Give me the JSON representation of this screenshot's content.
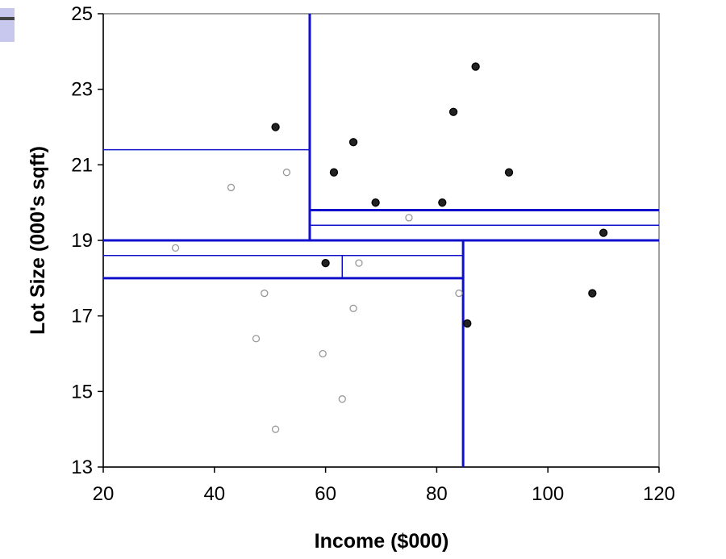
{
  "chart_data": {
    "type": "scatter",
    "title": "",
    "xlabel": "Income ($000)",
    "ylabel": "Lot Size (000's sqft)",
    "xlim": [
      20,
      120
    ],
    "ylim": [
      13,
      25
    ],
    "x_ticks": [
      20,
      40,
      60,
      80,
      100,
      120
    ],
    "y_ticks": [
      13,
      15,
      17,
      19,
      21,
      23,
      25
    ],
    "grid": false,
    "legend": "none",
    "colors": {
      "partition": "#1010CC",
      "filled_point": "#222222",
      "hollow_point": "#999999",
      "axis": "#808080"
    },
    "series": [
      {
        "marker": "filled",
        "points": [
          {
            "x": 51,
            "y": 22.0
          },
          {
            "x": 65,
            "y": 21.6
          },
          {
            "x": 61.5,
            "y": 20.8
          },
          {
            "x": 69,
            "y": 20.0
          },
          {
            "x": 81,
            "y": 20.0
          },
          {
            "x": 83,
            "y": 22.4
          },
          {
            "x": 87,
            "y": 23.6
          },
          {
            "x": 93,
            "y": 20.8
          },
          {
            "x": 110,
            "y": 19.2
          },
          {
            "x": 108,
            "y": 17.6
          },
          {
            "x": 60,
            "y": 18.4
          },
          {
            "x": 85.5,
            "y": 16.8
          }
        ]
      },
      {
        "marker": "hollow",
        "points": [
          {
            "x": 53,
            "y": 20.8
          },
          {
            "x": 43,
            "y": 20.4
          },
          {
            "x": 33,
            "y": 18.8
          },
          {
            "x": 75,
            "y": 19.6
          },
          {
            "x": 66,
            "y": 18.4
          },
          {
            "x": 49,
            "y": 17.6
          },
          {
            "x": 84,
            "y": 17.6
          },
          {
            "x": 65,
            "y": 17.2
          },
          {
            "x": 47.5,
            "y": 16.4
          },
          {
            "x": 59.5,
            "y": 16.0
          },
          {
            "x": 63,
            "y": 14.8
          },
          {
            "x": 51,
            "y": 14.0
          }
        ]
      }
    ],
    "partition_lines": [
      {
        "orient": "h",
        "at": 19.0,
        "from": 20,
        "to": 120,
        "weight": "thick"
      },
      {
        "orient": "v",
        "at": 57.15,
        "from": 19.0,
        "to": 25,
        "weight": "thick"
      },
      {
        "orient": "v",
        "at": 84.75,
        "from": 13,
        "to": 19.0,
        "weight": "thick"
      },
      {
        "orient": "h",
        "at": 21.4,
        "from": 20,
        "to": 57.15,
        "weight": "thin"
      },
      {
        "orient": "h",
        "at": 19.8,
        "from": 57.15,
        "to": 120,
        "weight": "thick"
      },
      {
        "orient": "h",
        "at": 19.4,
        "from": 57.15,
        "to": 120,
        "weight": "thin"
      },
      {
        "orient": "h",
        "at": 18.0,
        "from": 20,
        "to": 84.75,
        "weight": "thick"
      },
      {
        "orient": "h",
        "at": 18.6,
        "from": 20,
        "to": 84.75,
        "weight": "thin"
      },
      {
        "orient": "v",
        "at": 63.0,
        "from": 18.0,
        "to": 18.6,
        "weight": "thin"
      }
    ]
  }
}
